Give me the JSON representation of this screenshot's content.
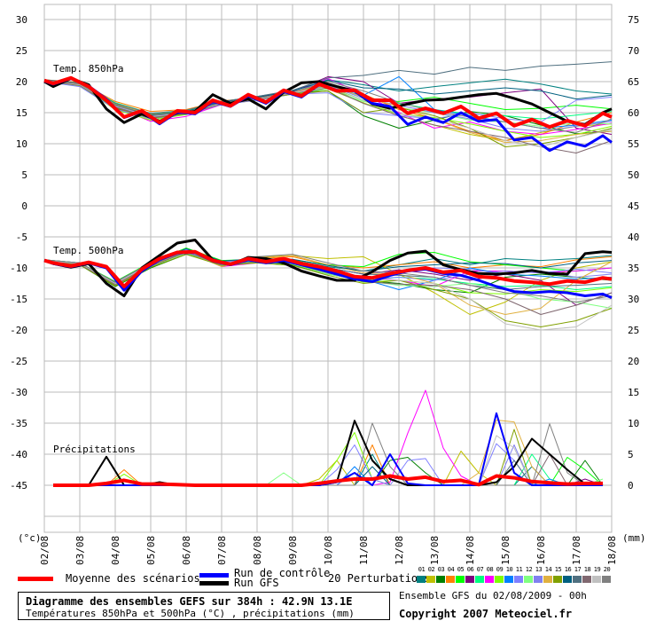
{
  "chart_data": {
    "type": "line",
    "title": "Diagramme des ensembles GEFS sur 384h : 42.9N 13.1E",
    "subtitle": "Températures 850hPa et 500hPa (°C) , précipitations (mm)",
    "run_info": "Ensemble GFS du 02/08/2009 - 00h",
    "copyright": "Copyright 2007 Meteociel.fr",
    "left_axis": {
      "unit_label": "(°c)",
      "range": [
        -52.5,
        32.5
      ],
      "ticks": [
        30,
        25,
        20,
        15,
        10,
        5,
        0,
        -5,
        -10,
        -15,
        -20,
        -25,
        -30,
        -35,
        -40,
        -45
      ]
    },
    "right_axis": {
      "unit_label": "(mm)",
      "ticks": [
        75,
        70,
        65,
        60,
        55,
        50,
        45,
        40,
        35,
        30,
        25,
        20,
        15,
        10,
        5,
        0
      ]
    },
    "x_axis": {
      "unit": "forecast hours",
      "range": [
        0,
        384
      ],
      "tick_labels": [
        "02/08",
        "03/08",
        "04/08",
        "05/08",
        "06/08",
        "07/08",
        "08/08",
        "09/08",
        "10/08",
        "11/08",
        "12/08",
        "13/08",
        "14/08",
        "15/08",
        "16/08",
        "17/08",
        "18/08"
      ]
    },
    "grid": true,
    "section_labels": {
      "t850": "Temp. 850hPa",
      "t500": "Temp. 500hPa",
      "precip": "Précipitations"
    },
    "legend": {
      "mean": "Moyenne des scénarios",
      "control": "Run de contrôle",
      "gfs": "Run GFS",
      "perturbations": "20 Perturbations"
    },
    "colors": {
      "mean": "#ff0000",
      "control": "#0000ff",
      "gfs": "#000000",
      "perturbations": [
        "#008080",
        "#c0c000",
        "#008000",
        "#ff8000",
        "#00ff00",
        "#800080",
        "#00ff80",
        "#ff00ff",
        "#80ff00",
        "#0080ff",
        "#8080ff",
        "#80ff80",
        "#8080f0",
        "#e0b040",
        "#80a000",
        "#006080",
        "#507080",
        "#806870",
        "#c0c0c0",
        "#808080"
      ]
    },
    "perturbation_ids": [
      "01",
      "02",
      "03",
      "04",
      "05",
      "06",
      "07",
      "08",
      "09",
      "10",
      "11",
      "12",
      "13",
      "14",
      "15",
      "16",
      "17",
      "18",
      "19",
      "20"
    ],
    "main_hours": [
      0,
      6,
      18,
      30,
      42,
      54,
      66,
      78,
      90,
      102,
      114,
      126,
      138,
      150,
      162,
      174,
      186,
      198,
      210,
      222,
      234,
      246,
      258,
      270,
      282,
      294,
      306,
      318,
      330,
      342,
      354,
      366,
      378,
      384
    ],
    "t850": {
      "mean": [
        20.2,
        19.7,
        20.6,
        19.2,
        17,
        14.3,
        15.3,
        13.4,
        15.3,
        15,
        17,
        16.1,
        17.9,
        16.7,
        18.6,
        17.7,
        19.6,
        18.5,
        18.6,
        17,
        17,
        14.9,
        15.7,
        14.9,
        16,
        14.1,
        14.9,
        12.9,
        13.9,
        12.7,
        13.7,
        12.9,
        14.9,
        14.3
      ],
      "control": [
        20.1,
        19.6,
        20.5,
        19.3,
        17.2,
        14.2,
        15.2,
        13.2,
        15.1,
        14.8,
        16.8,
        16,
        17.7,
        16.5,
        18.4,
        17.5,
        19.5,
        18.6,
        18.5,
        16.5,
        16,
        13.1,
        14.3,
        13.4,
        15,
        13.6,
        13.9,
        10.6,
        11,
        8.9,
        10.3,
        9.6,
        11.3,
        10.2
      ],
      "gfs": [
        20,
        19.2,
        20.5,
        19.5,
        15.6,
        13.4,
        14.8,
        13.6,
        15,
        15.2,
        17.9,
        16.5,
        17.2,
        15.6,
        18.3,
        19.8,
        20,
        19.2,
        18.5,
        16.4,
        15.7,
        16.4,
        17,
        17.1,
        17.5,
        17.9,
        18.1,
        17.3,
        16.4,
        15,
        13.6,
        13.1,
        15,
        15.6
      ]
    },
    "t500": {
      "mean": [
        -8.8,
        -9.2,
        -9.7,
        -9.1,
        -9.8,
        -13,
        -10.2,
        -8.5,
        -7.5,
        -7.4,
        -8.8,
        -9.4,
        -8.5,
        -9,
        -8.5,
        -9.3,
        -9.8,
        -10.5,
        -11.4,
        -11.6,
        -10.9,
        -10.4,
        -10,
        -10.7,
        -10.4,
        -11.4,
        -11.6,
        -12.1,
        -12.3,
        -12.6,
        -12.1,
        -12.3,
        -11.6,
        -11.8
      ],
      "control": [
        -8.8,
        -9.3,
        -9.8,
        -9.2,
        -10,
        -13.6,
        -10.5,
        -8.7,
        -7.6,
        -7.5,
        -8.9,
        -9.5,
        -8.7,
        -9.2,
        -8.8,
        -9.5,
        -10.2,
        -11,
        -11.8,
        -12.2,
        -11.2,
        -10.5,
        -10.2,
        -10.9,
        -11.2,
        -12,
        -13,
        -13.8,
        -14,
        -13.8,
        -14,
        -14.5,
        -14.2,
        -14.8
      ],
      "gfs": [
        -8.8,
        -9.3,
        -9.9,
        -9.3,
        -12.5,
        -14.5,
        -10,
        -8,
        -6,
        -5.5,
        -8.7,
        -9.5,
        -8.3,
        -8.5,
        -9.2,
        -10.5,
        -11.3,
        -12,
        -12,
        -10.6,
        -8.8,
        -7.6,
        -7.3,
        -9.5,
        -10.3,
        -10.9,
        -11,
        -10.8,
        -10.4,
        -10.9,
        -11,
        -7.7,
        -7.4,
        -7.5
      ]
    },
    "pert_hours": [
      0,
      24,
      48,
      72,
      96,
      120,
      144,
      168,
      192,
      216,
      240,
      264,
      288,
      312,
      336,
      360,
      384
    ],
    "t850_perturbations": [
      [
        20,
        19.6,
        16.3,
        14.8,
        15.3,
        16.8,
        17.6,
        18.5,
        20.3,
        19.5,
        18.5,
        19.2,
        19.8,
        20.4,
        19.6,
        18.5,
        18
      ],
      [
        20.1,
        19.3,
        15.8,
        14,
        14.7,
        16.3,
        17,
        18,
        18.8,
        16.6,
        14.5,
        13,
        11.5,
        10.5,
        11.8,
        12.8,
        13.2
      ],
      [
        20.2,
        19.5,
        15.7,
        14.1,
        14.9,
        16.4,
        17.1,
        18.2,
        18.5,
        14.5,
        12.5,
        13.8,
        15.2,
        14.5,
        13,
        11.6,
        12
      ],
      [
        20.3,
        19.9,
        16.8,
        15.2,
        15.5,
        16.9,
        17.4,
        18.3,
        19.7,
        18,
        15.5,
        14,
        12,
        10.5,
        11.5,
        13.5,
        15
      ],
      [
        20.1,
        19.4,
        16.1,
        14.6,
        15.1,
        16.6,
        17.3,
        18.3,
        19.2,
        17,
        16.8,
        17.5,
        16.5,
        15.5,
        15.7,
        16.2,
        15.6
      ],
      [
        20.2,
        19.6,
        16.2,
        14.4,
        15,
        16.7,
        17.5,
        18.4,
        20.8,
        20,
        16.5,
        17.2,
        17.5,
        18.2,
        18.8,
        12.5,
        11.5
      ],
      [
        20.2,
        19.8,
        16.6,
        14.9,
        15.3,
        16.7,
        17.3,
        18.3,
        19.6,
        17.5,
        16.5,
        15.5,
        14.8,
        14.5,
        14,
        14.6,
        15.2
      ],
      [
        20.1,
        19.4,
        15.9,
        13.6,
        14.4,
        16.3,
        17.1,
        18.1,
        20.5,
        18,
        15,
        12.5,
        13.5,
        12,
        11.5,
        12.3,
        13.3
      ],
      [
        20,
        19.3,
        15.5,
        13.8,
        14.7,
        16.4,
        17,
        18,
        19.3,
        16.5,
        14.8,
        14.2,
        13.2,
        12,
        11,
        11.5,
        12.8
      ],
      [
        20.2,
        19.5,
        16,
        14.5,
        15.1,
        16.5,
        17.2,
        18.2,
        19,
        17.8,
        20.8,
        15.5,
        14.5,
        13.5,
        12.5,
        13,
        13.8
      ],
      [
        20,
        19.2,
        15.6,
        14,
        14.8,
        16.3,
        17,
        18,
        18.2,
        15,
        14.5,
        14,
        15,
        14,
        13.5,
        17,
        17.5
      ],
      [
        20.1,
        19.5,
        15.9,
        14.2,
        14.9,
        16.4,
        17.2,
        18.1,
        18.8,
        16.8,
        15.8,
        15,
        13.8,
        13.5,
        12.8,
        13.3,
        13.2
      ],
      [
        20.2,
        19.5,
        16,
        14.3,
        15,
        16.5,
        17.1,
        18.2,
        19.4,
        17.3,
        16.2,
        15,
        14,
        12.5,
        12,
        12.8,
        13.6
      ],
      [
        20.3,
        19.7,
        16.4,
        14.7,
        15.2,
        16.7,
        17.3,
        18.3,
        19.5,
        17.5,
        16,
        14,
        11.8,
        10.2,
        10.5,
        11.5,
        12
      ],
      [
        20.1,
        19.4,
        15.8,
        14.1,
        14.8,
        16.4,
        17.1,
        18,
        18.5,
        15,
        15.8,
        14.5,
        12.5,
        9.5,
        10,
        11,
        12.5
      ],
      [
        20.2,
        19.6,
        16.2,
        14.6,
        15.2,
        16.7,
        17.5,
        18.5,
        20.2,
        19,
        18.8,
        18,
        18.5,
        19,
        18.5,
        17.2,
        17.8
      ],
      [
        20.3,
        19.8,
        16.5,
        14.9,
        15.4,
        16.8,
        17.6,
        18.6,
        20.6,
        21,
        21.8,
        21.2,
        22.3,
        21.8,
        22.5,
        22.8,
        23.2
      ],
      [
        20.1,
        19.4,
        15.9,
        14.2,
        14.9,
        16.4,
        17.1,
        18.1,
        19,
        16.5,
        14.5,
        13,
        12,
        11,
        9.5,
        8.5,
        10.5
      ],
      [
        20.2,
        19.5,
        16.1,
        14.4,
        15,
        16.5,
        17.2,
        18.2,
        19.1,
        17,
        14.8,
        14,
        12.5,
        10.5,
        9.5,
        11,
        12.3
      ],
      [
        20.2,
        19.6,
        16.2,
        14.5,
        15.1,
        16.6,
        17.3,
        18.3,
        20,
        18.5,
        16.6,
        15.2,
        14.3,
        13.5,
        12.5,
        11.8,
        14
      ]
    ],
    "t500_perturbations": [
      [
        -8.7,
        -9.2,
        -12.3,
        -9.2,
        -7,
        -9,
        -8.5,
        -8.8,
        -9.8,
        -10.5,
        -9.5,
        -8.5,
        -9.5,
        -8.5,
        -8.8,
        -8.5,
        -8
      ],
      [
        -8.8,
        -9.4,
        -12.8,
        -9.8,
        -7.5,
        -9.3,
        -8.2,
        -8,
        -8.5,
        -8.2,
        -11,
        -14,
        -17.5,
        -15.5,
        -12,
        -10,
        -9
      ],
      [
        -8.9,
        -9.5,
        -13,
        -10,
        -7.8,
        -9.5,
        -9,
        -9.5,
        -11,
        -12,
        -12.5,
        -13.5,
        -14,
        -11.5,
        -11,
        -11.5,
        -12
      ],
      [
        -8.8,
        -9.3,
        -12.4,
        -9.4,
        -7,
        -9,
        -8.5,
        -8.2,
        -9.5,
        -10,
        -9.5,
        -9,
        -10,
        -9.5,
        -9.8,
        -8.7,
        -8.2
      ],
      [
        -8.7,
        -9.2,
        -12.2,
        -9.1,
        -6.8,
        -8.8,
        -8.6,
        -8.7,
        -9.5,
        -9.8,
        -7.8,
        -7.5,
        -9,
        -9.5,
        -10,
        -10.5,
        -10
      ],
      [
        -8.8,
        -9.2,
        -12.5,
        -9.5,
        -7.2,
        -9.2,
        -8.7,
        -9.1,
        -10,
        -11,
        -10.3,
        -11,
        -12,
        -11,
        -12,
        -16,
        -14
      ],
      [
        -8.8,
        -9.4,
        -12.6,
        -9.6,
        -7.3,
        -9.4,
        -8.8,
        -9.2,
        -10.6,
        -12,
        -11.5,
        -11.8,
        -12.5,
        -13,
        -12.8,
        -13.5,
        -13
      ],
      [
        -8.8,
        -9.3,
        -12.6,
        -9.6,
        -7.3,
        -9.8,
        -9.2,
        -9.2,
        -10.2,
        -11.5,
        -12,
        -13,
        -10.5,
        -10.5,
        -10.8,
        -10.5,
        -10
      ],
      [
        -8.9,
        -9.4,
        -12.7,
        -9.7,
        -7.6,
        -9.6,
        -9.1,
        -9.3,
        -10.8,
        -12.3,
        -12,
        -12.5,
        -14,
        -14.2,
        -13.5,
        -13.8,
        -13.2
      ],
      [
        -8.8,
        -9.3,
        -12.5,
        -9.4,
        -7.1,
        -9.1,
        -8.6,
        -9.1,
        -10.6,
        -11.8,
        -13.5,
        -12,
        -10,
        -11,
        -11.3,
        -11.8,
        -11.5
      ],
      [
        -8.7,
        -9.3,
        -12.4,
        -9.5,
        -7.2,
        -9.1,
        -8.8,
        -9.3,
        -10.4,
        -11.8,
        -11.5,
        -12,
        -11,
        -10.5,
        -10.8,
        -10.2,
        -10.8
      ],
      [
        -8.8,
        -9.4,
        -12.7,
        -9.8,
        -7.6,
        -9.5,
        -9,
        -9.4,
        -11,
        -12,
        -12.8,
        -13,
        -12.5,
        -13.5,
        -15,
        -15.5,
        -16.5
      ],
      [
        -8.8,
        -9.2,
        -12.4,
        -9.3,
        -7,
        -9,
        -8.6,
        -8.9,
        -10,
        -11,
        -10.5,
        -10,
        -10.2,
        -11,
        -10.5,
        -11.5,
        -11
      ],
      [
        -8.8,
        -9.3,
        -12.6,
        -9.6,
        -7.4,
        -9.8,
        -8.4,
        -8,
        -9.5,
        -10.8,
        -11,
        -12.5,
        -16,
        -17.5,
        -16.5,
        -12,
        -9
      ],
      [
        -8.9,
        -9.5,
        -12.9,
        -9.9,
        -7.8,
        -9.6,
        -9.2,
        -9.6,
        -11.2,
        -12.5,
        -12,
        -13.5,
        -15,
        -18.5,
        -19.5,
        -18.5,
        -16.5
      ],
      [
        -8.7,
        -9.2,
        -12.3,
        -9.2,
        -6.9,
        -8.9,
        -8.5,
        -8.6,
        -9.6,
        -10.5,
        -9.8,
        -9.5,
        -9.2,
        -9.3,
        -10,
        -9.2,
        -8.8
      ],
      [
        -8.8,
        -9.3,
        -12.5,
        -9.5,
        -7.2,
        -9.2,
        -8.6,
        -8.8,
        -10,
        -11,
        -11.2,
        -11.5,
        -12.8,
        -13.5,
        -13,
        -12.8,
        -12.5
      ],
      [
        -8.8,
        -9.4,
        -12.7,
        -9.7,
        -7.5,
        -9.4,
        -9,
        -9.3,
        -10.8,
        -12.2,
        -12.6,
        -12.8,
        -13.5,
        -15,
        -17.5,
        -16,
        -14
      ],
      [
        -8.8,
        -9.3,
        -12.5,
        -9.4,
        -7.2,
        -9.2,
        -8.7,
        -9.1,
        -10.5,
        -11.7,
        -12,
        -12.5,
        -15,
        -19,
        -20,
        -19.5,
        -16
      ],
      [
        -8.7,
        -9.2,
        -12.3,
        -9.2,
        -7.5,
        -9.5,
        -8.2,
        -7.8,
        -9.2,
        -10.5,
        -10.8,
        -11.5,
        -12.8,
        -14,
        -14.5,
        -15.5,
        -14.5
      ]
    ],
    "precip_hours": [
      6,
      18,
      30,
      42,
      54,
      66,
      78,
      90,
      102,
      114,
      126,
      138,
      150,
      162,
      174,
      186,
      198,
      210,
      222,
      234,
      246,
      258,
      270,
      282,
      294,
      306,
      318,
      330,
      342,
      354,
      366,
      378
    ],
    "precip_mm": {
      "mean": {
        "42": 0.3,
        "54": 0.8,
        "66": 0.2,
        "78": 0.2,
        "90": 0.1,
        "186": 0.3,
        "198": 0.7,
        "210": 1,
        "222": 1,
        "234": 1.5,
        "246": 1,
        "258": 1.3,
        "270": 0.6,
        "282": 0.8,
        "294": 0.1,
        "306": 1.5,
        "318": 1.2,
        "330": 0.6,
        "342": 0.4,
        "354": 0.2,
        "366": 0.3,
        "378": 0.3
      },
      "control": {
        "198": 0.5,
        "210": 2,
        "234": 5,
        "246": 0.3,
        "306": 11.6,
        "318": 2
      },
      "gfs": {
        "42": 4.6,
        "78": 0.5,
        "198": 0.5,
        "210": 10.4,
        "222": 4,
        "234": 1,
        "306": 0.5,
        "318": 3,
        "330": 7.5,
        "342": 5,
        "354": 2.5,
        "366": 0.2
      },
      "perturbations": [
        {
          "222": 5,
          "330": 3
        },
        {
          "186": 1,
          "198": 4,
          "282": 5.5,
          "294": 2
        },
        {
          "234": 4,
          "246": 4.5,
          "258": 2,
          "366": 4
        },
        {
          "54": 2.5,
          "222": 6.5
        },
        {
          "354": 4.5,
          "366": 2.5
        },
        {
          "366": 1
        },
        {
          "330": 5,
          "342": 1
        },
        {
          "234": 0.5,
          "246": 8.4,
          "258": 15.3,
          "270": 6,
          "282": 1.5
        },
        {
          "54": 1.8,
          "198": 4,
          "210": 8.5,
          "222": 1
        },
        {
          "210": 3,
          "342": 1
        },
        {
          "198": 2.5,
          "210": 6.5,
          "222": 1,
          "246": 4,
          "258": 4.3,
          "306": 6.7,
          "318": 4
        },
        {
          "162": 2,
          "378": 1
        },
        {
          "210": 2,
          "318": 6.5
        },
        {
          "294": 2,
          "306": 10.5,
          "318": 10.2,
          "330": 3
        },
        {
          "318": 9
        },
        {
          "222": 3
        },
        {
          "318": 4
        },
        {
          "342": 5
        },
        {
          "306": 8,
          "318": 6
        },
        {
          "222": 10,
          "234": 3,
          "342": 9.9,
          "354": 2
        }
      ]
    }
  }
}
